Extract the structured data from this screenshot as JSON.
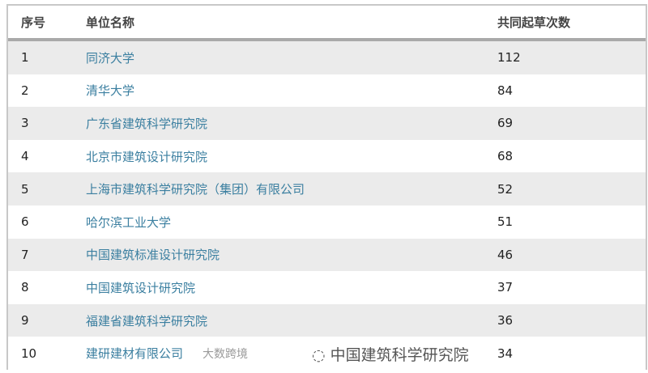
{
  "table": {
    "headers": [
      "序号",
      "单位名称",
      "共同起草次数"
    ],
    "rows": [
      {
        "no": "1",
        "name": "同济大学",
        "count": "112"
      },
      {
        "no": "2",
        "name": "清华大学",
        "count": "84"
      },
      {
        "no": "3",
        "name": "广东省建筑科学研究院",
        "count": "69"
      },
      {
        "no": "4",
        "name": "北京市建筑设计研究院",
        "count": "68"
      },
      {
        "no": "5",
        "name": "上海市建筑科学研究院（集团）有限公司",
        "count": "52"
      },
      {
        "no": "6",
        "name": "哈尔滨工业大学",
        "count": "51"
      },
      {
        "no": "7",
        "name": "中国建筑标准设计研究院",
        "count": "46"
      },
      {
        "no": "8",
        "name": "中国建筑设计研究院",
        "count": "37"
      },
      {
        "no": "9",
        "name": "福建省建筑科学研究院",
        "count": "36"
      },
      {
        "no": "10",
        "name": "建研建材有限公司",
        "count": "34"
      }
    ]
  },
  "watermarks": {
    "left": "大数跨境",
    "right": "中国建筑科学研究院"
  },
  "colors": {
    "link": "#3b7fa0",
    "stripe": "#ebebeb",
    "header_rule": "#a9a9a9"
  }
}
